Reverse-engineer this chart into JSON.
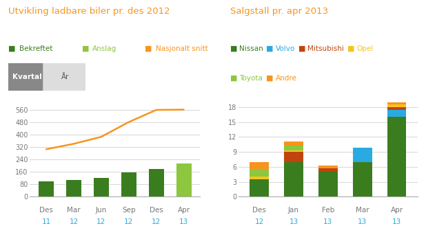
{
  "left_title": "Utvikling ladbare biler pr. des 2012",
  "left_legend": [
    {
      "label": "Bekreftet",
      "color": "#3a7d1e"
    },
    {
      "label": "Anslag",
      "color": "#8dc63f"
    },
    {
      "label": "Nasjonalt snitt",
      "color": "#f7941d"
    }
  ],
  "left_x_labels": [
    [
      "Des",
      "11"
    ],
    [
      "Mar",
      "12"
    ],
    [
      "Jun",
      "12"
    ],
    [
      "Sep",
      "12"
    ],
    [
      "Des",
      "12"
    ],
    [
      "Apr",
      "13"
    ]
  ],
  "bar_values": [
    100,
    107,
    120,
    155,
    178,
    215
  ],
  "bar_colors": [
    "#3a7d1e",
    "#3a7d1e",
    "#3a7d1e",
    "#3a7d1e",
    "#3a7d1e",
    "#8dc63f"
  ],
  "line_values": [
    305,
    340,
    385,
    480,
    558,
    560
  ],
  "line_color": "#f7941d",
  "left_ylim": [
    0,
    640
  ],
  "left_yticks": [
    0,
    80,
    160,
    240,
    320,
    400,
    480,
    560
  ],
  "right_title": "Salgstall pr. apr 2013",
  "right_legend": [
    {
      "label": "Nissan",
      "color": "#3a7d1e"
    },
    {
      "label": "Volvo",
      "color": "#29abe2"
    },
    {
      "label": "Mitsubishi",
      "color": "#c1440e"
    },
    {
      "label": "Opel",
      "color": "#f7c31d"
    },
    {
      "label": "Toyota",
      "color": "#8dc63f"
    },
    {
      "label": "Andre",
      "color": "#f7941d"
    }
  ],
  "right_x_labels": [
    [
      "Des",
      "12"
    ],
    [
      "Jan",
      "13"
    ],
    [
      "Feb",
      "13"
    ],
    [
      "Mar",
      "13"
    ],
    [
      "Apr",
      "13"
    ]
  ],
  "stacked_data": {
    "Nissan": [
      3.5,
      7.0,
      5.2,
      7.0,
      16.0
    ],
    "Volvo": [
      0.0,
      0.0,
      0.0,
      2.8,
      1.5
    ],
    "Mitsubishi": [
      0.0,
      2.0,
      0.5,
      0.0,
      0.5
    ],
    "Opel": [
      0.5,
      0.3,
      0.0,
      0.0,
      0.5
    ],
    "Toyota": [
      1.5,
      1.0,
      0.0,
      0.0,
      0.0
    ],
    "Andre": [
      1.5,
      0.8,
      0.5,
      0.0,
      0.5
    ]
  },
  "stacked_colors": {
    "Nissan": "#3a7d1e",
    "Volvo": "#29abe2",
    "Mitsubishi": "#c1440e",
    "Opel": "#f7c31d",
    "Toyota": "#8dc63f",
    "Andre": "#f7941d"
  },
  "stacked_order": [
    "Nissan",
    "Volvo",
    "Mitsubishi",
    "Opel",
    "Toyota",
    "Andre"
  ],
  "right_ylim": [
    0,
    20
  ],
  "right_yticks": [
    0,
    3,
    6,
    9,
    12,
    15,
    18
  ],
  "bg_color": "#ffffff",
  "grid_color": "#d0d0d0",
  "title_color": "#f7941d",
  "axis_color": "#777777",
  "year_color": "#29abe2",
  "kvartal_button_bg": "#888888",
  "kvartal_button_fg": "#ffffff",
  "year_button_bg": "#dddddd",
  "year_button_fg": "#555555"
}
